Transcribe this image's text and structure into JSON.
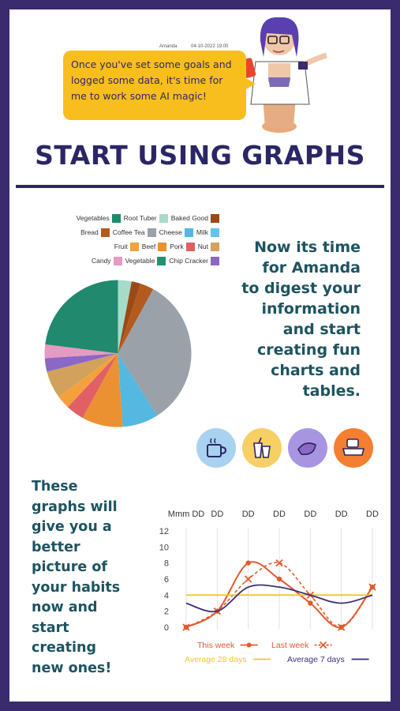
{
  "header": {
    "speaker": "Amanda",
    "timestamp": "04-10-2022 19:00",
    "message": "Once you've set some goals and logged some data, it's time for me to work some AI magic!"
  },
  "title": "START USING GRAPHS",
  "side_text": [
    "Now its time",
    "for Amanda",
    "to digest your",
    "information",
    "and start",
    "creating fun",
    "charts and",
    "tables."
  ],
  "left_text": [
    "These",
    "graphs will",
    "give you a",
    "better",
    "picture of",
    "your habits",
    "now and",
    "start",
    "creating",
    "new ones!"
  ],
  "pie_legend": [
    [
      {
        "label": "Vegetables",
        "color": "#21896e"
      },
      {
        "label": "Root Tuber",
        "color": "#a6dbc8"
      },
      {
        "label": "Baked Good",
        "color": "#9b4a16"
      }
    ],
    [
      {
        "label": "Bread",
        "color": "#b35a1f"
      },
      {
        "label": "Coffee Tea",
        "color": "#9aa1a8"
      },
      {
        "label": "Cheese",
        "color": "#54b8e0"
      },
      {
        "label": "Milk",
        "color": "#66c3ea"
      }
    ],
    [
      {
        "label": "Fruit",
        "color": "#f4a13c"
      },
      {
        "label": "Beef",
        "color": "#ec9132"
      },
      {
        "label": "Pork",
        "color": "#e06065"
      },
      {
        "label": "Nut",
        "color": "#d2a25c"
      }
    ],
    [
      {
        "label": "Candy",
        "color": "#e59ac3"
      },
      {
        "label": "Vegetable",
        "color": "#22916f"
      },
      {
        "label": "Chip Cracker",
        "color": "#8a68c6"
      }
    ]
  ],
  "chart_data": [
    {
      "type": "pie",
      "slices": [
        {
          "label": "Root Tuber",
          "value": 3,
          "color": "#a6dbc8"
        },
        {
          "label": "Baked Good",
          "value": 2,
          "color": "#9b4a16"
        },
        {
          "label": "Bread",
          "value": 3,
          "color": "#b35a1f"
        },
        {
          "label": "Coffee Tea",
          "value": 33,
          "color": "#9aa1a8"
        },
        {
          "label": "Milk",
          "value": 8,
          "color": "#54b8e0"
        },
        {
          "label": "Beef",
          "value": 9,
          "color": "#ec9132"
        },
        {
          "label": "Pork",
          "value": 4,
          "color": "#e06065"
        },
        {
          "label": "Fruit",
          "value": 3,
          "color": "#f4a13c"
        },
        {
          "label": "Nut",
          "value": 6,
          "color": "#d2a25c"
        },
        {
          "label": "Chip Cracker",
          "value": 3,
          "color": "#8a68c6"
        },
        {
          "label": "Candy",
          "value": 3,
          "color": "#e59ac3"
        },
        {
          "label": "Vegetables",
          "value": 23,
          "color": "#21896e"
        }
      ]
    },
    {
      "type": "line",
      "categories": [
        "Mmm DD",
        "DD",
        "DD",
        "DD",
        "DD",
        "DD",
        "DD"
      ],
      "yticks": [
        0,
        2,
        4,
        6,
        8,
        10,
        12
      ],
      "ylim": [
        0,
        12
      ],
      "series": [
        {
          "name": "This week",
          "values": [
            0,
            2,
            8,
            6,
            3,
            0,
            5
          ],
          "color": "#e25a2c",
          "style": "solid-dot"
        },
        {
          "name": "Last week",
          "values": [
            0,
            2,
            6,
            8,
            4,
            0,
            5
          ],
          "color": "#e25a2c",
          "style": "dashed-x"
        },
        {
          "name": "Average 28 days",
          "values": [
            4,
            4,
            4,
            4,
            4,
            4,
            4
          ],
          "color": "#f1c233",
          "style": "flat"
        },
        {
          "name": "Average 7 days",
          "values": [
            3,
            2,
            5,
            5,
            4,
            3,
            4
          ],
          "color": "#3b2f7a",
          "style": "smooth"
        }
      ]
    }
  ],
  "icons": [
    {
      "name": "coffee-cup-icon",
      "color": "#a8d2ef"
    },
    {
      "name": "drinks-icon",
      "color": "#f8cf64"
    },
    {
      "name": "chips-icon",
      "color": "#a895e2"
    },
    {
      "name": "food-container-icon",
      "color": "#f47f30"
    }
  ]
}
